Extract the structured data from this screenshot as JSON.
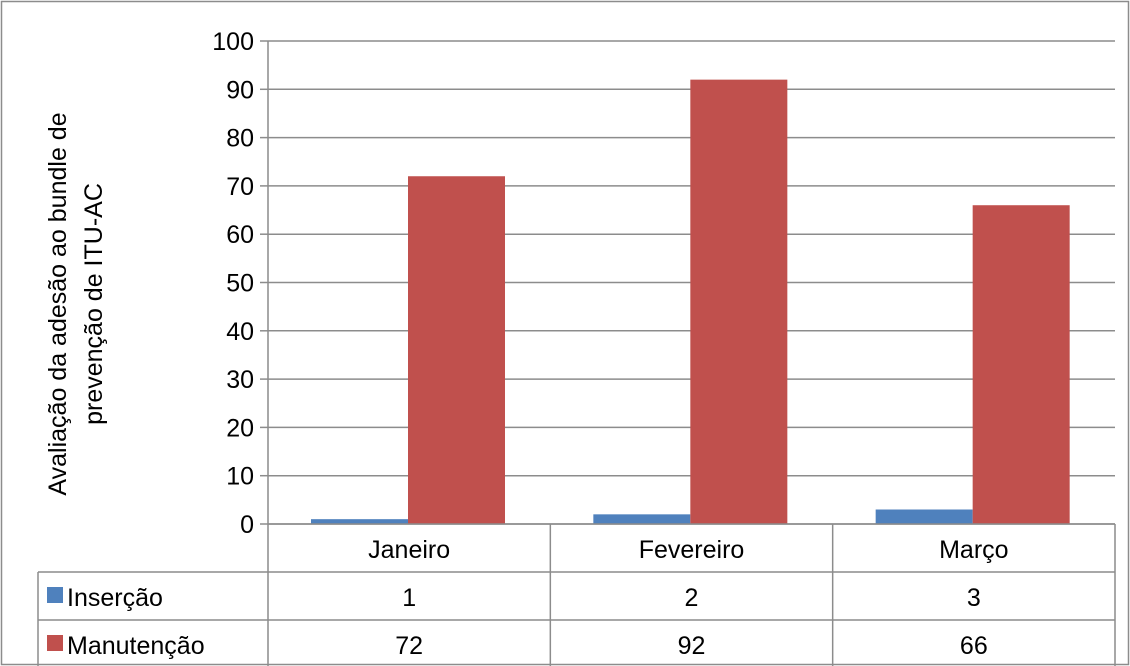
{
  "chart_data": {
    "type": "bar",
    "categories": [
      "Janeiro",
      "Fevereiro",
      "Março"
    ],
    "series": [
      {
        "name": "Inserção",
        "values": [
          1,
          2,
          3
        ],
        "color": "#4f81bd"
      },
      {
        "name": "Manutenção",
        "values": [
          72,
          92,
          66
        ],
        "color": "#c0504d"
      }
    ],
    "ylabel_lines": [
      "Avaliação da adesão ao bundle de",
      "prevenção de ITU-AC"
    ],
    "ylim": [
      0,
      100
    ],
    "yticks": [
      "0",
      "10",
      "20",
      "30",
      "40",
      "50",
      "60",
      "70",
      "80",
      "90",
      "100"
    ],
    "grid": true,
    "legend": "data-table-bottom"
  }
}
